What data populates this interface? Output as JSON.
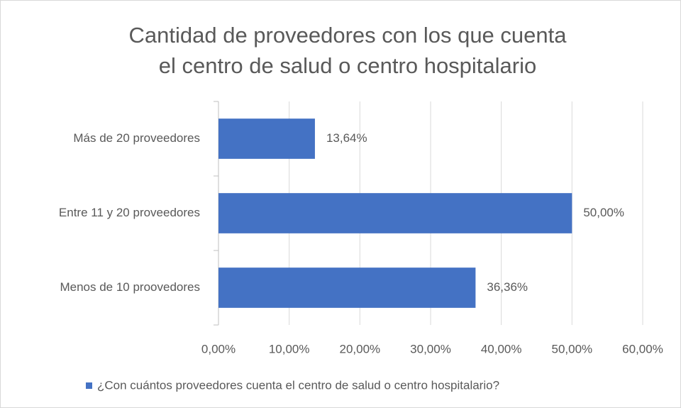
{
  "chart_data": {
    "type": "bar",
    "orientation": "horizontal",
    "title": [
      "Cantidad de proveedores con los que cuenta",
      "el centro de salud o centro hospitalario"
    ],
    "categories": [
      "Más de 20 proveedores",
      "Entre 11 y 20 proveedores",
      "Menos de 10 proovedores"
    ],
    "series": [
      {
        "name": "¿Con cuántos proveedores cuenta el centro de salud o centro hospitalario?",
        "color": "#4472c4",
        "values": [
          13.64,
          50.0,
          36.36
        ],
        "value_labels": [
          "13,64%",
          "50,00%",
          "36,36%"
        ]
      }
    ],
    "xlim": [
      0,
      60
    ],
    "xticks": [
      {
        "value": 0,
        "label": "0,00%"
      },
      {
        "value": 10,
        "label": "10,00%"
      },
      {
        "value": 20,
        "label": "20,00%"
      },
      {
        "value": 30,
        "label": "30,00%"
      },
      {
        "value": 40,
        "label": "40,00%"
      },
      {
        "value": 50,
        "label": "50,00%"
      },
      {
        "value": 60,
        "label": "60,00%"
      }
    ],
    "grid": true,
    "legend": "bottom"
  }
}
